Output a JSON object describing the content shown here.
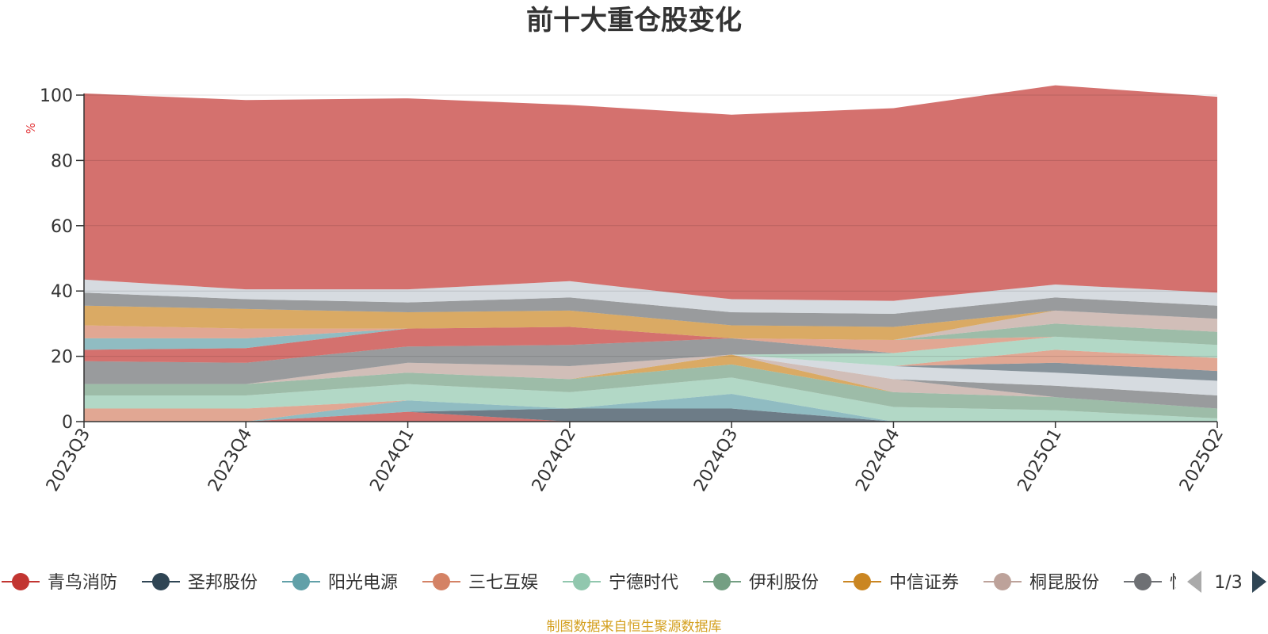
{
  "chart_data": {
    "type": "area",
    "stacked": true,
    "title": "前十大重仓股变化",
    "ylabel": "%",
    "ylim": [
      0,
      100
    ],
    "y_ticks": [
      "0",
      "20",
      "40",
      "60",
      "80",
      "100"
    ],
    "categories": [
      "2023Q3",
      "2023Q4",
      "2024Q1",
      "2024Q2",
      "2024Q3",
      "2024Q4",
      "2025Q1",
      "2025Q2"
    ],
    "grid": true,
    "legend": {
      "position": "bottom",
      "page": "1/3",
      "visible_items": [
        "青鸟消防",
        "圣邦股份",
        "阳光电源",
        "三七互娱",
        "宁德时代",
        "伊利股份",
        "中信证券",
        "桐昆股份"
      ],
      "truncated_item_prefix": "恒"
    },
    "source_note": "制图数据来自恒生聚源数据库",
    "series": [
      {
        "name": "青鸟消防",
        "color": "#c23531",
        "values": [
          0,
          0,
          3,
          0,
          0,
          0,
          0,
          0
        ]
      },
      {
        "name": "圣邦股份",
        "color": "#2f4554",
        "values": [
          0,
          0,
          0,
          4,
          4,
          0,
          0,
          0
        ]
      },
      {
        "name": "阳光电源",
        "color": "#61a0a8",
        "values": [
          0,
          0,
          3.5,
          0,
          4.5,
          0,
          0,
          0
        ]
      },
      {
        "name": "三七互娱",
        "color": "#d48265",
        "values": [
          4,
          4,
          0,
          0,
          0,
          0,
          0,
          0
        ]
      },
      {
        "name": "宁德时代",
        "color": "#91c7ae",
        "values": [
          4,
          4,
          5,
          5,
          5,
          4.5,
          3.5,
          1
        ]
      },
      {
        "name": "伊利股份",
        "color": "#749f83",
        "values": [
          3.5,
          3.5,
          3.5,
          4,
          4,
          4.5,
          4,
          3
        ]
      },
      {
        "name": "中信证券",
        "color": "#ca8622",
        "values": [
          0,
          0,
          0,
          0,
          3,
          0,
          0,
          0
        ]
      },
      {
        "name": "桐昆股份",
        "color": "#bda29a",
        "values": [
          0,
          0,
          3,
          4,
          0,
          4,
          0,
          0
        ]
      },
      {
        "name": "",
        "color": "#6e7074",
        "values": [
          0,
          0,
          0,
          0,
          0,
          0,
          3.5,
          4
        ]
      },
      {
        "name": "",
        "color": "#c4ccd3",
        "values": [
          0,
          0,
          0,
          0,
          0,
          4,
          4,
          4.5
        ]
      },
      {
        "name": "",
        "color": "#546570",
        "values": [
          0,
          0,
          0,
          0,
          0,
          0,
          3,
          3
        ]
      },
      {
        "name": "",
        "color": "#d48265",
        "values": [
          0,
          0,
          0,
          0,
          0,
          0,
          4,
          4
        ]
      },
      {
        "name": "",
        "color": "#91c7ae",
        "values": [
          0,
          0,
          0,
          0,
          0,
          4,
          4,
          4
        ]
      },
      {
        "name": "",
        "color": "#6e7074",
        "values": [
          7,
          6.5,
          5,
          6.5,
          5,
          0,
          0,
          0
        ]
      },
      {
        "name": "",
        "color": "#c23531",
        "values": [
          3.5,
          4.5,
          5.5,
          5.5,
          0,
          0,
          0,
          0
        ]
      },
      {
        "name": "",
        "color": "#61a0a8",
        "values": [
          3.5,
          3,
          0,
          0,
          0,
          0,
          0,
          0
        ]
      },
      {
        "name": "",
        "color": "#d48265",
        "values": [
          4,
          3,
          0,
          0,
          0,
          4,
          0,
          0
        ]
      },
      {
        "name": "",
        "color": "#749f83",
        "values": [
          0,
          0,
          0,
          0,
          0,
          0,
          4,
          4
        ]
      },
      {
        "name": "",
        "color": "#bda29a",
        "values": [
          0,
          0,
          0,
          0,
          0,
          0,
          4,
          4
        ]
      },
      {
        "name": "",
        "color": "#ca8622",
        "values": [
          6,
          6,
          5,
          5,
          4,
          4,
          0,
          0
        ]
      },
      {
        "name": "",
        "color": "#6e7074",
        "values": [
          4,
          3,
          3,
          4,
          4,
          4,
          4,
          4
        ]
      },
      {
        "name": "",
        "color": "#c4ccd3",
        "values": [
          4,
          3,
          4,
          5,
          4,
          4,
          4,
          4
        ]
      },
      {
        "name": "",
        "color": "#c23531",
        "values": [
          57,
          58,
          58.5,
          54,
          56.5,
          59,
          61,
          60
        ]
      }
    ]
  }
}
